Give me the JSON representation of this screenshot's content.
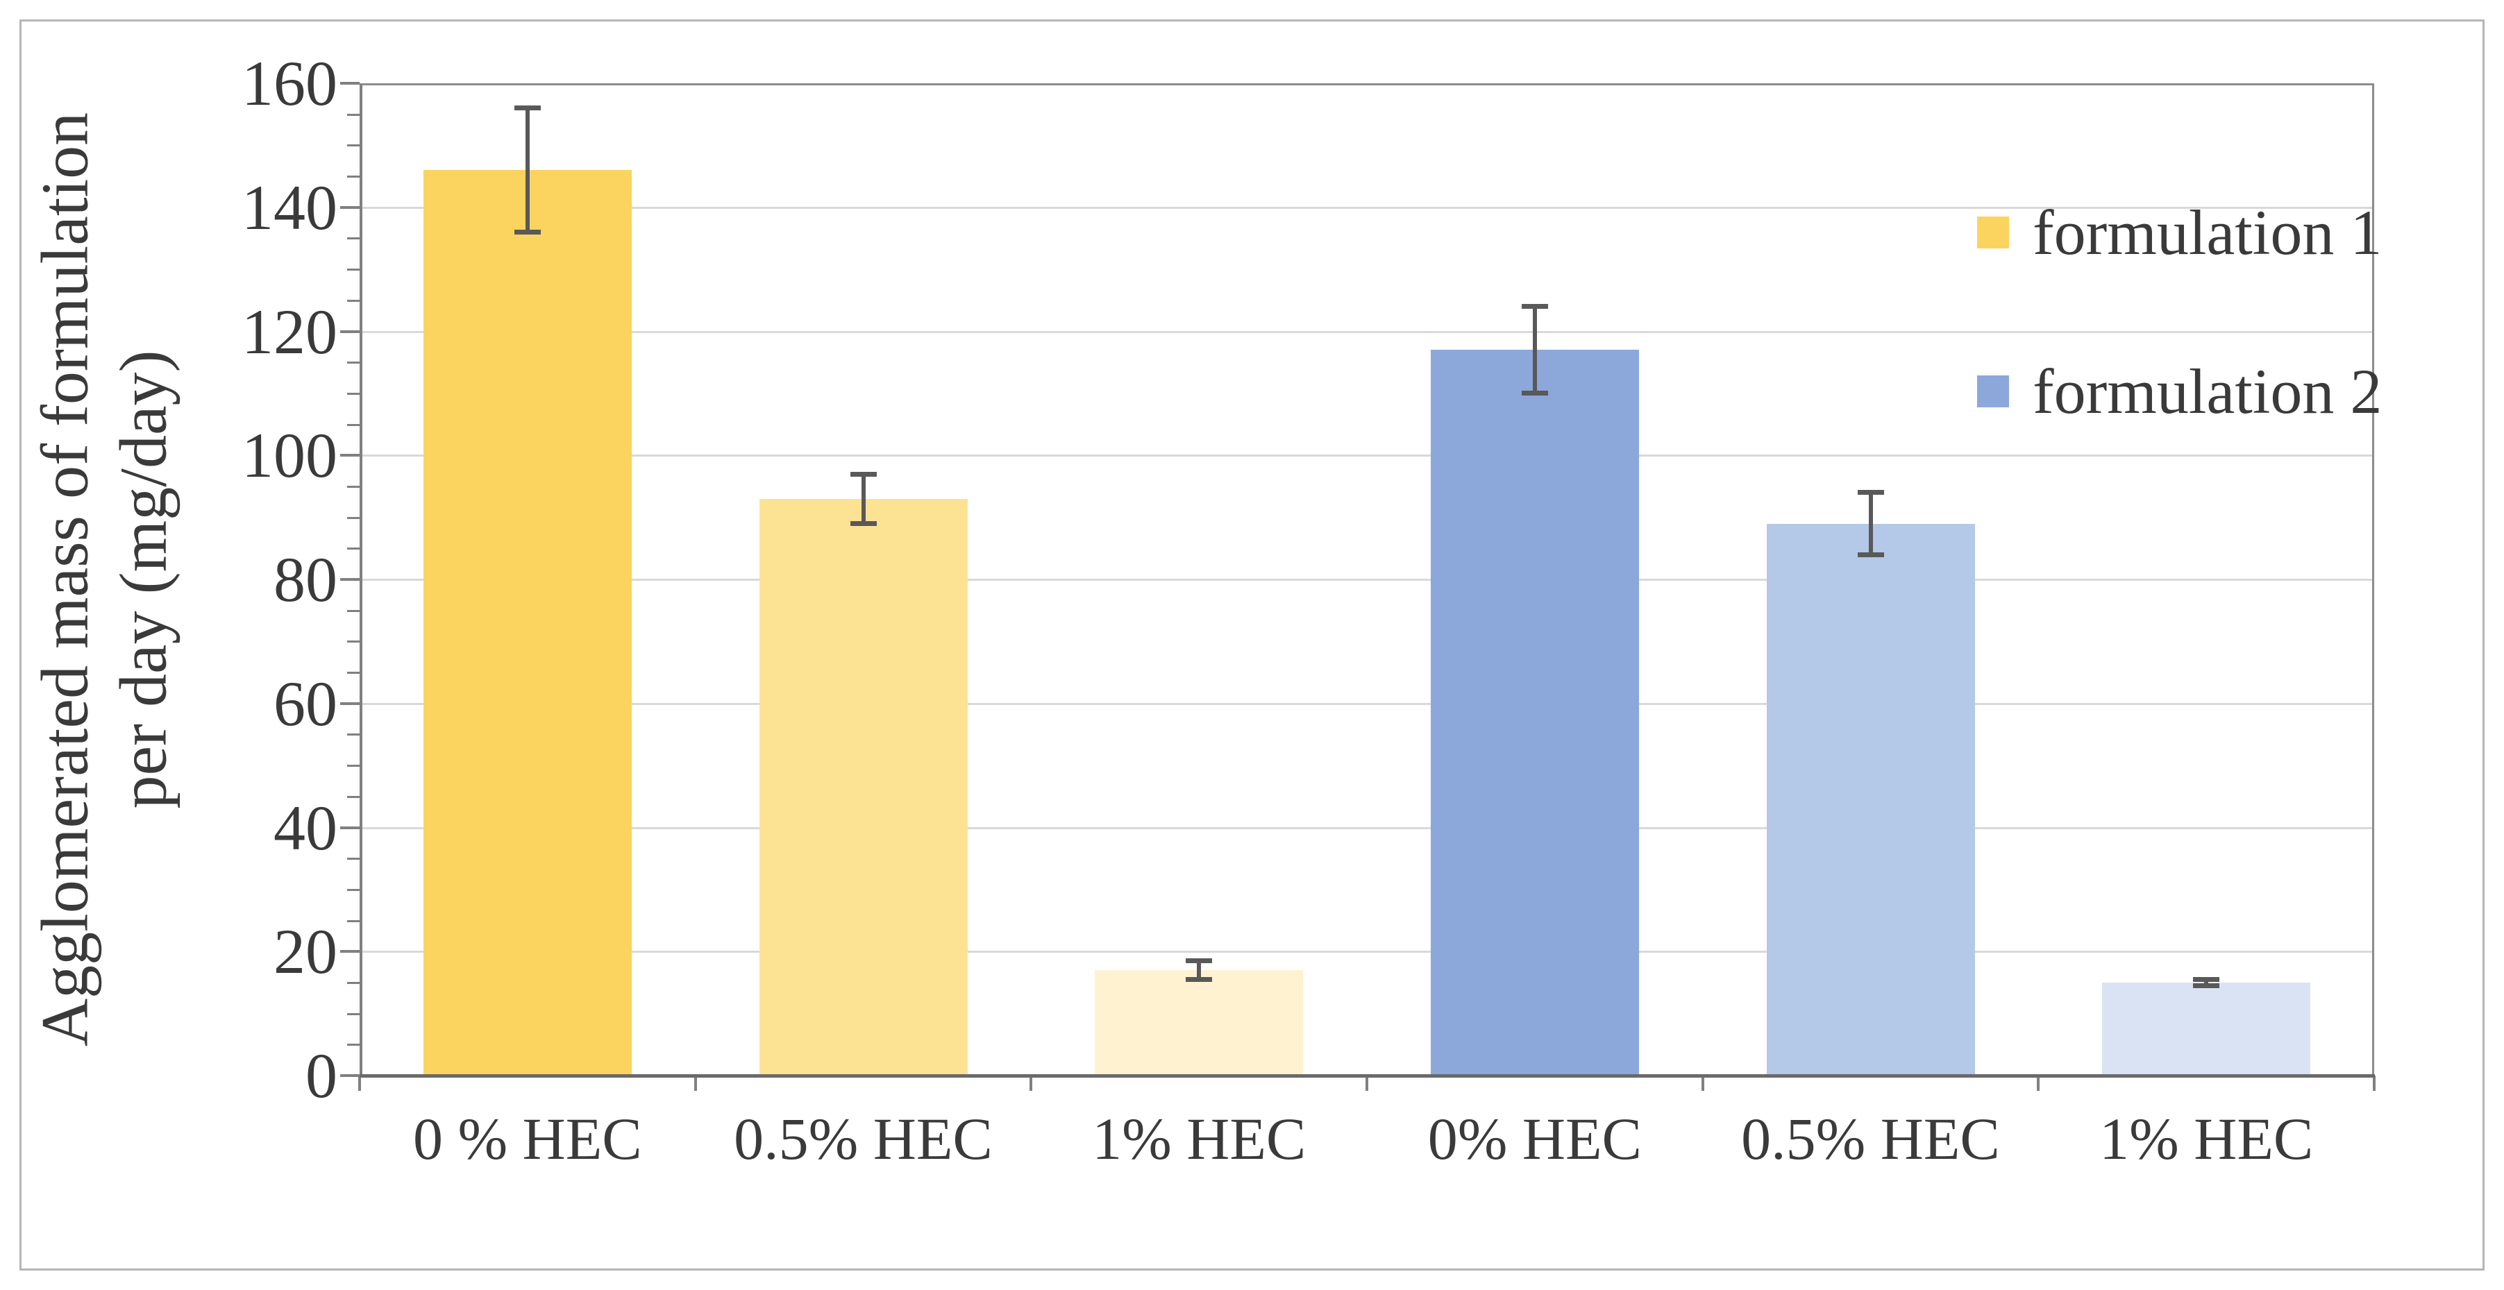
{
  "figure": {
    "background": "#FFFFFF",
    "border_color": "#B5B5B5"
  },
  "chart_data": {
    "type": "bar",
    "title": "",
    "xlabel": "",
    "ylabel": "Agglomerated mass of formulation per day (mg/day)",
    "ylabel_line1": "Agglomerated mass of formulation",
    "ylabel_line2": "per day (mg/day)",
    "ylim": [
      0,
      160
    ],
    "ytick_interval": 20,
    "y_minor_tick_interval": 5,
    "grid": true,
    "legend_position": "top-right-inside",
    "x_labels": [
      "0 % HEC",
      "0.5% HEC",
      "1% HEC",
      "0% HEC",
      "0.5% HEC",
      "1% HEC"
    ],
    "series": [
      {
        "name": "formulation 1",
        "categories": [
          "0 % HEC",
          "0.5% HEC",
          "1% HEC"
        ],
        "values": [
          146,
          93,
          17
        ],
        "errors": [
          10,
          4,
          1.5
        ],
        "bar_colors": [
          "#FAD45E",
          "#FCE394",
          "#FEF2D0"
        ]
      },
      {
        "name": "formulation 2",
        "categories": [
          "0% HEC",
          "0.5% HEC",
          "1% HEC"
        ],
        "values": [
          117,
          89,
          15
        ],
        "errors": [
          7,
          5,
          0.5
        ],
        "bar_colors": [
          "#8CA7DA",
          "#B4C8E8",
          "#DAE3F3"
        ]
      }
    ],
    "error_bar_color": "#595959",
    "gridline_color": "#D9D9D9",
    "axis_color": "#808080",
    "text_color": "#3A3A3A"
  },
  "y_axis": {
    "tick_labels": [
      "0",
      "20",
      "40",
      "60",
      "80",
      "100",
      "120",
      "140",
      "160"
    ]
  },
  "legend": {
    "items": [
      {
        "label": "formulation 1",
        "color": "#FAD45E"
      },
      {
        "label": "formulation 2",
        "color": "#8CA7DA"
      }
    ]
  }
}
